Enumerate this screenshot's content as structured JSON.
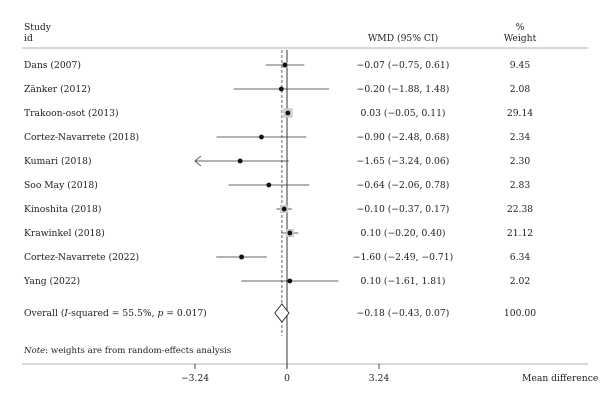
{
  "header": {
    "study_line1": "Study",
    "study_line2": "id",
    "effect_label": "WMD (95% CI)",
    "weight_line1": "%",
    "weight_line2": "Weight"
  },
  "note": {
    "prefix": "Note",
    "text": ": weights are from random-effects analysis"
  },
  "chart_data": {
    "type": "forest",
    "xlabel": "Mean difference",
    "xlim": [
      -4.2,
      4.2
    ],
    "null_line": 0,
    "overall_line": -0.18,
    "ticks": [
      {
        "value": -3.24,
        "label": "−3.24"
      },
      {
        "value": 0,
        "label": "0"
      },
      {
        "value": 3.24,
        "label": "3.24"
      }
    ],
    "studies": [
      {
        "name": "Dans (2007)",
        "wmd": -0.07,
        "lo": -0.75,
        "hi": 0.61,
        "ci_text": "−0.07 (−0.75, 0.61)",
        "weight": 9.45,
        "weight_text": "9.45"
      },
      {
        "name": "Zänker (2012)",
        "wmd": -0.2,
        "lo": -1.88,
        "hi": 1.48,
        "ci_text": "−0.20 (−1.88, 1.48)",
        "weight": 2.08,
        "weight_text": "2.08"
      },
      {
        "name": "Trakoon-osot (2013)",
        "wmd": 0.03,
        "lo": -0.05,
        "hi": 0.11,
        "ci_text": "0.03 (−0.05, 0.11)",
        "weight": 29.14,
        "weight_text": "29.14"
      },
      {
        "name": "Cortez-Navarrete (2018)",
        "wmd": -0.9,
        "lo": -2.48,
        "hi": 0.68,
        "ci_text": "−0.90 (−2.48, 0.68)",
        "weight": 2.34,
        "weight_text": "2.34"
      },
      {
        "name": "Kumari (2018)",
        "wmd": -1.65,
        "lo": -3.24,
        "hi": 0.06,
        "ci_text": "−1.65 (−3.24, 0.06)",
        "weight": 2.3,
        "weight_text": "2.30",
        "arrow_left": true
      },
      {
        "name": "Soo May (2018)",
        "wmd": -0.64,
        "lo": -2.06,
        "hi": 0.78,
        "ci_text": "−0.64 (−2.06, 0.78)",
        "weight": 2.83,
        "weight_text": "2.83"
      },
      {
        "name": "Kinoshita (2018)",
        "wmd": -0.1,
        "lo": -0.37,
        "hi": 0.17,
        "ci_text": "−0.10 (−0.37, 0.17)",
        "weight": 22.38,
        "weight_text": "22.38"
      },
      {
        "name": "Krawinkel (2018)",
        "wmd": 0.1,
        "lo": -0.2,
        "hi": 0.4,
        "ci_text": "0.10 (−0.20, 0.40)",
        "weight": 21.12,
        "weight_text": "21.12"
      },
      {
        "name": "Cortez-Navarrete (2022)",
        "wmd": -1.6,
        "lo": -2.49,
        "hi": -0.71,
        "ci_text": "−1.60 (−2.49, −0.71)",
        "weight": 6.34,
        "weight_text": "6.34"
      },
      {
        "name": "Yang (2022)",
        "wmd": 0.1,
        "lo": -1.61,
        "hi": 1.81,
        "ci_text": "0.10 (−1.61, 1.81)",
        "weight": 2.02,
        "weight_text": "2.02"
      }
    ],
    "overall": {
      "name_prefix": "Overall (",
      "name_i": "I",
      "name_mid": "-squared = 55.5%, ",
      "name_p": "p",
      "name_suffix": " = 0.017)",
      "wmd": -0.18,
      "lo": -0.43,
      "hi": 0.07,
      "ci_text": "−0.18 (−0.43, 0.07)",
      "weight": 100.0,
      "weight_text": "100.00"
    }
  }
}
